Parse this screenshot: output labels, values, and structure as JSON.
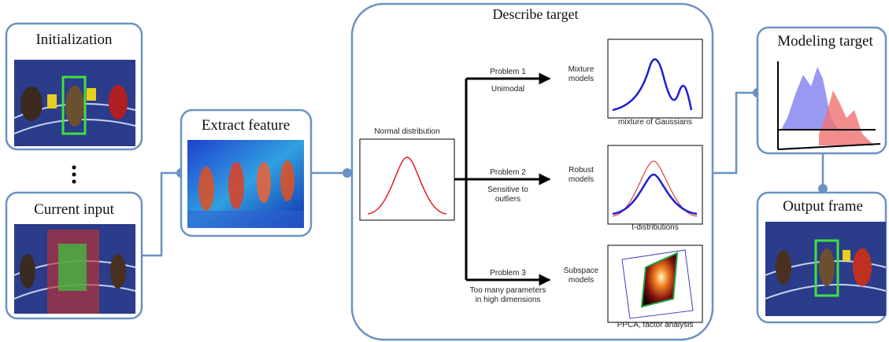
{
  "nodes": [
    {
      "label": "Initialization"
    },
    {
      "label": "Current input"
    },
    {
      "label": "Extract feature"
    },
    {
      "label": "Describe target"
    },
    {
      "label": "Modeling target"
    },
    {
      "label": "Output frame"
    }
  ],
  "normal": {
    "label": "Normal distribution"
  },
  "problems": [
    {
      "label": "Problem 1",
      "description": [
        "Unimodal"
      ],
      "solution": [
        "Mixture",
        "models"
      ],
      "caption": "mixture of Gaussians"
    },
    {
      "label": "Problem 2",
      "description": [
        "Sensitive to",
        "outliers"
      ],
      "solution": [
        "Robust",
        "models"
      ],
      "caption": "t-distributions"
    },
    {
      "label": "Problem 3",
      "description": [
        "Too many parameters",
        "in high dimensions"
      ],
      "solution": [
        "Subspace",
        "models"
      ],
      "caption": "PPCA, factor analysis"
    }
  ]
}
